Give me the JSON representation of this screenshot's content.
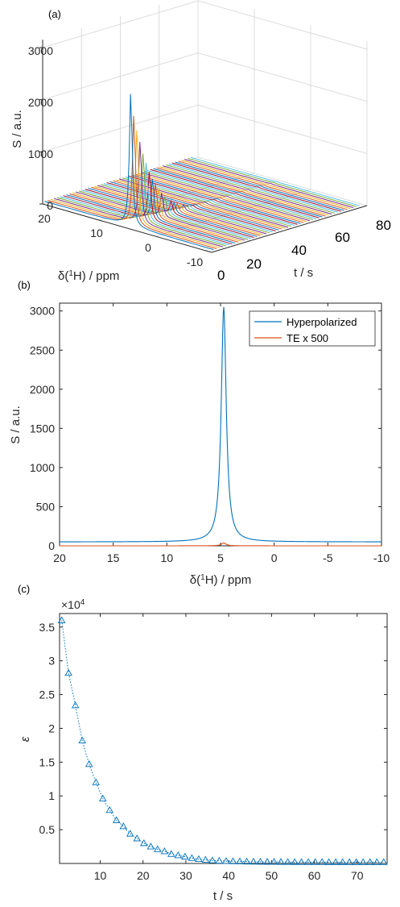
{
  "chart_data": [
    {
      "panel": "(a)",
      "type": "waterfall-3d",
      "zlabel": "S / a.u.",
      "xlabel": "δ(¹H) / ppm",
      "ylabel": "t / s",
      "x_ticks": [
        "20",
        "10",
        "0",
        "-10"
      ],
      "y_ticks": [
        "0",
        "20",
        "40",
        "60",
        "80"
      ],
      "z_ticks": [
        "0",
        "1000",
        "2000",
        "3000"
      ],
      "xlim": [
        -10,
        20
      ],
      "ylim": [
        0,
        80
      ],
      "zlim": [
        0,
        3000
      ],
      "peak_position_ppm": 4.7,
      "peak_heights_first_scans": [
        2600,
        2150,
        1850,
        1600,
        1350,
        1150,
        950,
        800,
        680,
        560,
        460,
        380,
        310,
        250,
        200,
        160,
        125,
        95,
        70,
        50
      ]
    },
    {
      "panel": "(b)",
      "type": "line",
      "xlabel": "δ(¹H) / ppm",
      "ylabel": "S / a.u.",
      "x_ticks": [
        "20",
        "15",
        "10",
        "5",
        "0",
        "-5",
        "-10"
      ],
      "y_ticks": [
        "0",
        "500",
        "1000",
        "1500",
        "2000",
        "2500",
        "3000"
      ],
      "xlim": [
        20,
        -10
      ],
      "ylim": [
        0,
        3100
      ],
      "series": [
        {
          "name": "Hyperpolarized",
          "color": "#0072BD",
          "peak_x": 4.7,
          "peak_y": 3050,
          "baseline": 50
        },
        {
          "name": "TE x 500",
          "color": "#D95319",
          "peak_x": 4.7,
          "peak_y": 35,
          "baseline": 0
        }
      ],
      "legend": "top-right"
    },
    {
      "panel": "(c)",
      "type": "scatter",
      "xlabel": "t / s",
      "ylabel": "ε",
      "exponent_label": "×10",
      "exponent_power": "4",
      "x_ticks": [
        "10",
        "20",
        "30",
        "40",
        "50",
        "60",
        "70"
      ],
      "y_ticks": [
        "0.5",
        "1",
        "1.5",
        "2",
        "2.5",
        "3",
        "3.5"
      ],
      "xlim": [
        0.5,
        77
      ],
      "ylim": [
        0,
        37000
      ],
      "marker": "triangle",
      "color": "#0072BD",
      "x": [
        1,
        2.6,
        4.2,
        5.8,
        7.4,
        9,
        10.6,
        12.2,
        13.8,
        15.4,
        17,
        18.6,
        20.2,
        21.8,
        23.4,
        25,
        26.6,
        28.2,
        29.8,
        31.4,
        33,
        34.6,
        36.2,
        37.8,
        39.4,
        41,
        42.6,
        44.2,
        45.8,
        47.4,
        49,
        50.6,
        52.2,
        53.8,
        55.4,
        57,
        58.6,
        60.2,
        61.8,
        63.4,
        65,
        66.6,
        68.2,
        69.8,
        71.4,
        73,
        74.6,
        76.2
      ],
      "y": [
        36000,
        28200,
        23400,
        18200,
        14700,
        12000,
        9600,
        7900,
        6400,
        5500,
        4400,
        3700,
        3000,
        2500,
        2100,
        1800,
        1400,
        1200,
        1000,
        800,
        650,
        550,
        450,
        400,
        350,
        320,
        300,
        280,
        260,
        250,
        240,
        230,
        220,
        215,
        210,
        205,
        200,
        200,
        200,
        195,
        195,
        195,
        190,
        190,
        190,
        190,
        190,
        190
      ]
    }
  ]
}
